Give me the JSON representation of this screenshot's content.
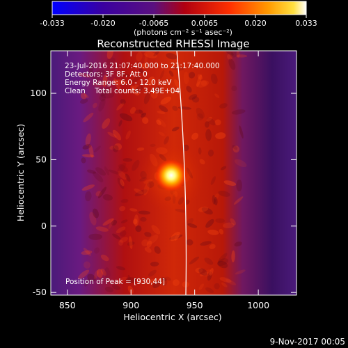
{
  "colorbar": {
    "ticks": [
      "-0.033",
      "-0.020",
      "-0.0065",
      "0.0065",
      "0.020",
      "0.033"
    ],
    "unit_label": "(photons cm⁻² s⁻¹ asec⁻²)",
    "colors": [
      "#0000ff",
      "#3a00a0",
      "#5a1080",
      "#b00010",
      "#ff3000",
      "#ff9a00",
      "#ffe040",
      "#ffffff"
    ]
  },
  "chart_data": {
    "type": "heatmap",
    "title": "Reconstructed RHESSI Image",
    "xlabel": "Heliocentric X (arcsec)",
    "ylabel": "Heliocentric Y (arcsec)",
    "xlim": [
      837,
      1030
    ],
    "ylim": [
      -52,
      132
    ],
    "xticks": [
      850,
      900,
      950,
      1000
    ],
    "yticks": [
      -50,
      0,
      50,
      100
    ],
    "peak": {
      "x": 930,
      "y": 44
    },
    "info_lines": [
      "23-Jul-2016 21:07:40.000 to 21:17:40.000",
      "Detectors: 3F 8F, Att 0",
      "Energy Range: 6.0 - 12.0 keV",
      "Clean    Total counts: 3.49E+04"
    ],
    "peak_text": "Position of Peak = [930,44]"
  },
  "footer": {
    "date": "9-Nov-2017 00:05"
  }
}
